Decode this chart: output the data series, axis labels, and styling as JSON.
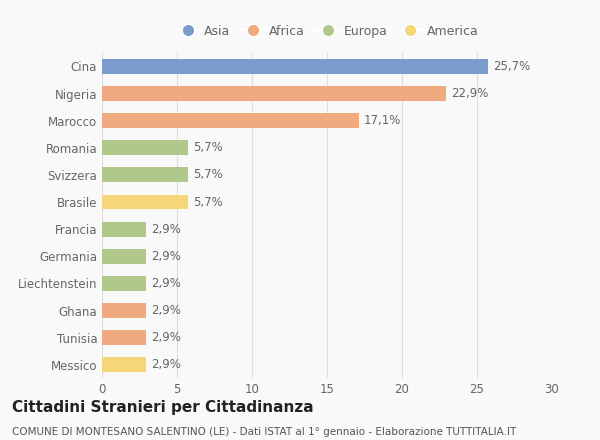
{
  "categories": [
    "Messico",
    "Tunisia",
    "Ghana",
    "Liechtenstein",
    "Germania",
    "Francia",
    "Brasile",
    "Svizzera",
    "Romania",
    "Marocco",
    "Nigeria",
    "Cina"
  ],
  "values": [
    2.9,
    2.9,
    2.9,
    2.9,
    2.9,
    2.9,
    5.7,
    5.7,
    5.7,
    17.1,
    22.9,
    25.7
  ],
  "labels": [
    "2,9%",
    "2,9%",
    "2,9%",
    "2,9%",
    "2,9%",
    "2,9%",
    "5,7%",
    "5,7%",
    "5,7%",
    "17,1%",
    "22,9%",
    "25,7%"
  ],
  "colors": [
    "#f5d778",
    "#f0aa80",
    "#f0aa80",
    "#b0c88a",
    "#b0c88a",
    "#b0c88a",
    "#f5d778",
    "#b0c88a",
    "#b0c88a",
    "#f0aa80",
    "#f0aa80",
    "#7a9ccc"
  ],
  "legend_items": [
    {
      "label": "Asia",
      "color": "#7a9ccc"
    },
    {
      "label": "Africa",
      "color": "#f0aa80"
    },
    {
      "label": "Europa",
      "color": "#b0c88a"
    },
    {
      "label": "America",
      "color": "#f5d778"
    }
  ],
  "xlim": [
    0,
    30
  ],
  "xticks": [
    0,
    5,
    10,
    15,
    20,
    25,
    30
  ],
  "title": "Cittadini Stranieri per Cittadinanza",
  "subtitle": "COMUNE DI MONTESANO SALENTINO (LE) - Dati ISTAT al 1° gennaio - Elaborazione TUTTITALIA.IT",
  "background_color": "#f9f9f9",
  "bar_height": 0.55,
  "label_fontsize": 8.5,
  "title_fontsize": 11,
  "subtitle_fontsize": 7.5,
  "tick_fontsize": 8.5
}
